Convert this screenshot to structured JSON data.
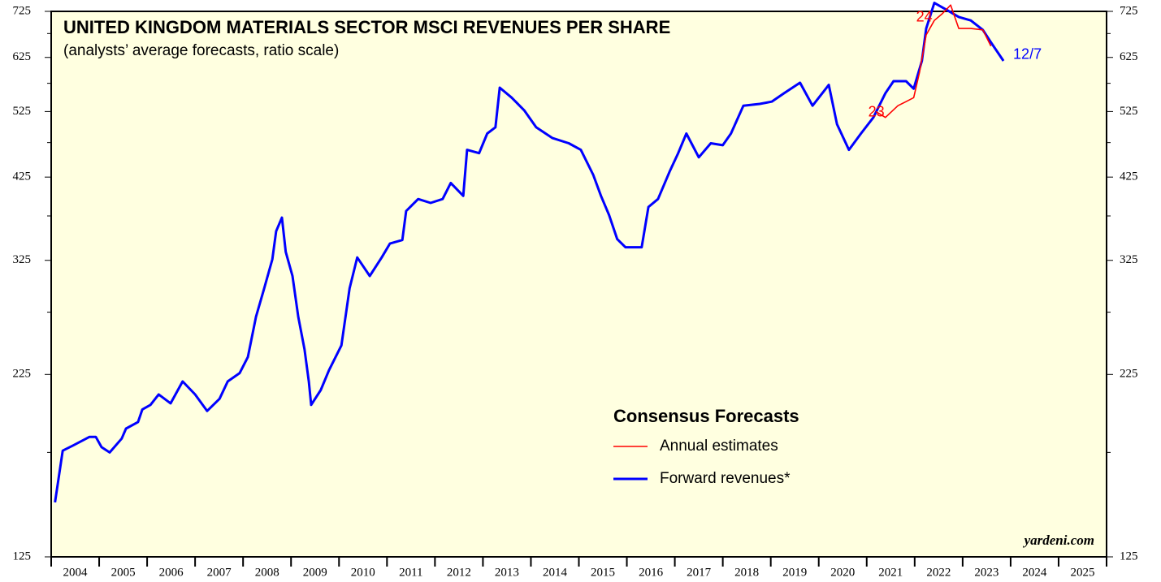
{
  "chart_data": {
    "type": "line",
    "title": "UNITED KINGDOM MATERIALS SECTOR MSCI REVENUES PER SHARE",
    "subtitle": "(analysts’ average forecasts, ratio scale)",
    "legend_title": "Consensus Forecasts",
    "source": "yardeni.com",
    "log_scale": true,
    "ylim": [
      125,
      725
    ],
    "yticks": [
      125,
      225,
      325,
      425,
      525,
      625,
      725
    ],
    "yminor_ticks": [
      175,
      275,
      375,
      475,
      575,
      675
    ],
    "xlim": [
      2004,
      2026
    ],
    "categories": [
      "2004",
      "2005",
      "2006",
      "2007",
      "2008",
      "2009",
      "2010",
      "2011",
      "2012",
      "2013",
      "2014",
      "2015",
      "2016",
      "2017",
      "2018",
      "2019",
      "2020",
      "2021",
      "2022",
      "2023",
      "2024",
      "2025"
    ],
    "series": [
      {
        "name": "Annual estimates",
        "color": "#ff0000",
        "x": [
          2021.19,
          2021.39,
          2021.65,
          2021.82,
          2021.98,
          2022.1,
          2022.24,
          2022.41,
          2022.58,
          2022.75,
          2022.92,
          2023.17,
          2023.42,
          2023.59
        ],
        "values": [
          525,
          515,
          535,
          542,
          549,
          595,
          672,
          704,
          720,
          740,
          686,
          686,
          683,
          648
        ]
      },
      {
        "name": "Forward revenues*",
        "color": "#0000ff",
        "x": [
          2004.08,
          2004.24,
          2004.46,
          2004.8,
          2004.93,
          2005.05,
          2005.22,
          2005.47,
          2005.56,
          2005.81,
          2005.9,
          2006.07,
          2006.24,
          2006.49,
          2006.74,
          2007.0,
          2007.25,
          2007.51,
          2007.68,
          2007.93,
          2008.1,
          2008.27,
          2008.44,
          2008.61,
          2008.69,
          2008.81,
          2008.89,
          2009.03,
          2009.15,
          2009.28,
          2009.37,
          2009.42,
          2009.62,
          2009.79,
          2010.05,
          2010.22,
          2010.38,
          2010.64,
          2010.89,
          2011.06,
          2011.32,
          2011.4,
          2011.65,
          2011.91,
          2012.16,
          2012.33,
          2012.59,
          2012.67,
          2012.92,
          2013.09,
          2013.26,
          2013.35,
          2013.6,
          2013.86,
          2014.11,
          2014.45,
          2014.79,
          2015.04,
          2015.3,
          2015.46,
          2015.63,
          2015.8,
          2015.97,
          2016.31,
          2016.45,
          2016.65,
          2016.9,
          2017.07,
          2017.24,
          2017.5,
          2017.75,
          2018.0,
          2018.17,
          2018.43,
          2018.77,
          2019.02,
          2019.28,
          2019.61,
          2019.87,
          2020.21,
          2020.38,
          2020.63,
          2020.88,
          2021.14,
          2021.39,
          2021.56,
          2021.82,
          2021.98,
          2022.15,
          2022.24,
          2022.41,
          2022.66,
          2022.92,
          2023.17,
          2023.42,
          2023.59,
          2023.85
        ],
        "values": [
          149,
          176,
          179,
          184,
          184,
          178,
          175,
          183,
          189,
          193,
          201,
          204,
          211,
          205,
          220,
          211,
          200,
          208,
          220,
          226,
          238,
          271,
          297,
          326,
          357,
          373,
          334,
          309,
          271,
          244,
          220,
          204,
          214,
          228,
          247,
          297,
          328,
          309,
          328,
          343,
          347,
          381,
          396,
          391,
          396,
          417,
          400,
          464,
          459,
          489,
          499,
          567,
          549,
          527,
          499,
          482,
          474,
          464,
          428,
          400,
          376,
          348,
          339,
          339,
          386,
          396,
          434,
          459,
          489,
          453,
          474,
          471,
          489,
          535,
          538,
          542,
          557,
          576,
          535,
          572,
          504,
          464,
          489,
          515,
          557,
          579,
          579,
          565,
          618,
          686,
          745,
          729,
          712,
          704,
          683,
          656,
          618
        ]
      }
    ],
    "annotations": [
      {
        "text": "23",
        "x": 2021.2,
        "y": 523,
        "color": "#ff0000"
      },
      {
        "text": "24",
        "x": 2022.2,
        "y": 710,
        "color": "#ff0000"
      },
      {
        "text": "12/7",
        "x": 2024.35,
        "y": 630,
        "color": "#0000ff"
      }
    ]
  }
}
